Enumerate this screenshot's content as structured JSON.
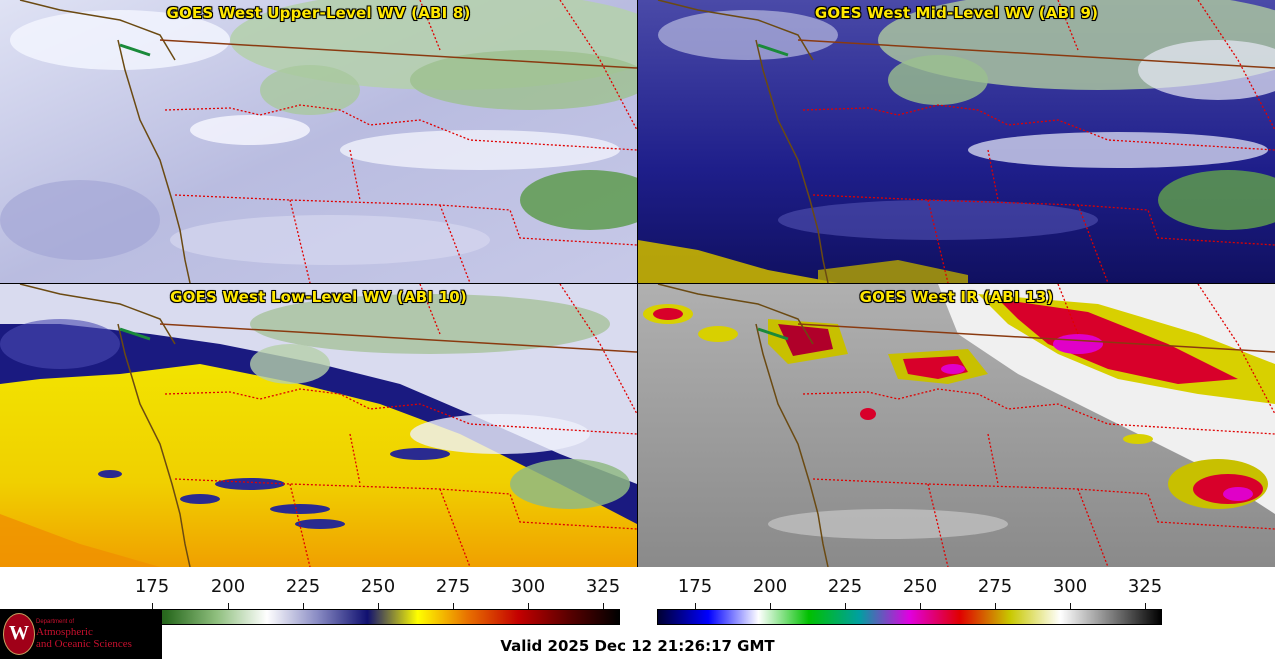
{
  "panels": {
    "upper": {
      "title": "GOES West Upper-Level WV (ABI 8)"
    },
    "mid": {
      "title": "GOES West Mid-Level WV (ABI 9)"
    },
    "low": {
      "title": "GOES West Low-Level WV (ABI 10)"
    },
    "ir": {
      "title": "GOES West IR (ABI 13)"
    }
  },
  "colorbars": {
    "wv": {
      "ticks": [
        "175",
        "200",
        "225",
        "250",
        "275",
        "300",
        "325"
      ],
      "range": [
        165,
        332
      ],
      "gradient_colors": [
        "#0d2a0d",
        "#2a6a1f",
        "#8fbf7e",
        "#ffffff",
        "#8a8cc4",
        "#101070",
        "#ffff00",
        "#e87000",
        "#c40000",
        "#5a0000",
        "#000000"
      ]
    },
    "ir": {
      "ticks": [
        "175",
        "200",
        "225",
        "250",
        "275",
        "300",
        "325"
      ],
      "range": [
        169,
        333
      ],
      "gradient_colors": [
        "#000033",
        "#0000ff",
        "#ffffff",
        "#00c000",
        "#00a0a0",
        "#e000e0",
        "#e00000",
        "#c8c800",
        "#ffffff",
        "#808080",
        "#000000"
      ]
    }
  },
  "logo": {
    "seal_letter": "W",
    "department_line": "Department of",
    "line1": "Atmospheric",
    "line2": "and Oceanic Sciences"
  },
  "footer": {
    "valid_text": "Valid 2025 Dec 12 21:26:17 GMT"
  }
}
